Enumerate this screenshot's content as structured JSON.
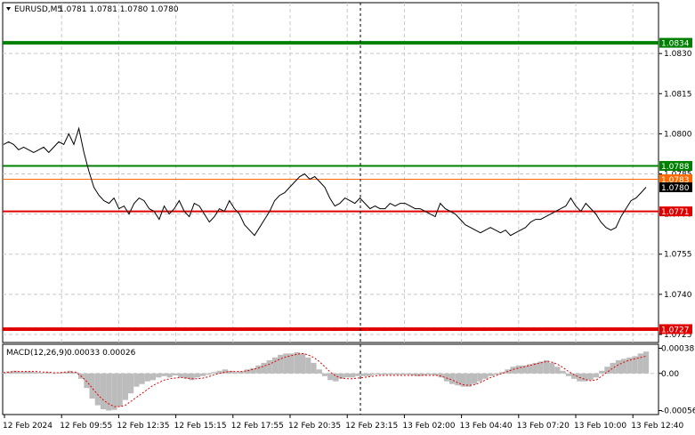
{
  "header": {
    "symbol": "EURUSD,M5",
    "ohlc": "1.0781 1.0781 1.0780 1.0780",
    "dropdown_icon": "triangle-down-icon"
  },
  "chart_data": {
    "type": "line",
    "title": "EURUSD,M5",
    "ylim": [
      1.0722,
      1.0849
    ],
    "price_ticks": [
      "1.0830",
      "1.0815",
      "1.0800",
      "1.0785",
      "1.0770",
      "1.0755",
      "1.0740",
      "1.0725"
    ],
    "time_ticks": [
      "12 Feb 2024",
      "12 Feb 09:55",
      "12 Feb 12:35",
      "12 Feb 15:15",
      "12 Feb 17:55",
      "12 Feb 20:35",
      "12 Feb 23:15",
      "13 Feb 02:00",
      "13 Feb 04:40",
      "13 Feb 07:20",
      "13 Feb 10:00",
      "13 Feb 12:40"
    ],
    "levels": [
      {
        "price": 1.0834,
        "label": "1.0834",
        "color": "#008000",
        "width": 4
      },
      {
        "price": 1.0788,
        "label": "1.0788",
        "color": "#008000",
        "width": 2
      },
      {
        "price": 1.0783,
        "label": "1.0783",
        "color": "#ff6a00",
        "width": 1
      },
      {
        "price": 1.0771,
        "label": "1.0771",
        "color": "#e00000",
        "width": 2
      },
      {
        "price": 1.0727,
        "label": "1.0727",
        "color": "#e00000",
        "width": 4
      }
    ],
    "current_price": "1.0780",
    "price_series": {
      "name": "EURUSD",
      "values": [
        1.0796,
        1.0797,
        1.0796,
        1.0794,
        1.0795,
        1.0794,
        1.0793,
        1.0794,
        1.0795,
        1.0793,
        1.0795,
        1.0797,
        1.0796,
        1.08,
        1.0796,
        1.0802,
        1.0793,
        1.0786,
        1.078,
        1.0777,
        1.0775,
        1.0774,
        1.0776,
        1.0772,
        1.0773,
        1.077,
        1.0774,
        1.0776,
        1.0775,
        1.0772,
        1.0771,
        1.0768,
        1.0773,
        1.077,
        1.0772,
        1.0775,
        1.0771,
        1.0769,
        1.0774,
        1.0773,
        1.077,
        1.0767,
        1.0769,
        1.0772,
        1.0771,
        1.0775,
        1.0772,
        1.077,
        1.0766,
        1.0764,
        1.0762,
        1.0765,
        1.0768,
        1.0771,
        1.0775,
        1.0777,
        1.0778,
        1.078,
        1.0782,
        1.0784,
        1.0785,
        1.0783,
        1.0784,
        1.0782,
        1.078,
        1.0776,
        1.0773,
        1.0774,
        1.0776,
        1.0775,
        1.0774,
        1.0776,
        1.0774,
        1.0772,
        1.0773,
        1.0772,
        1.0772,
        1.0774,
        1.0773,
        1.0774,
        1.0774,
        1.0773,
        1.0772,
        1.0772,
        1.0771,
        1.077,
        1.0769,
        1.0774,
        1.0772,
        1.0771,
        1.077,
        1.0768,
        1.0766,
        1.0765,
        1.0764,
        1.0763,
        1.0764,
        1.0765,
        1.0764,
        1.0763,
        1.0764,
        1.0762,
        1.0763,
        1.0764,
        1.0765,
        1.0767,
        1.0768,
        1.0768,
        1.0769,
        1.077,
        1.0771,
        1.0772,
        1.0773,
        1.0776,
        1.0773,
        1.0771,
        1.0774,
        1.0772,
        1.077,
        1.0767,
        1.0765,
        1.0764,
        1.0765,
        1.0769,
        1.0772,
        1.0775,
        1.0776,
        1.0778,
        1.078
      ]
    },
    "macd": {
      "label": "MACD(12,26,9)",
      "values_text": "0.00033 0.00026",
      "ticks": [
        "0.00038",
        "0.00",
        "-0.00056"
      ],
      "ylim": [
        -0.00062,
        0.00044
      ],
      "histogram": [
        1e-05,
        3e-05,
        4e-05,
        3e-05,
        3e-05,
        3e-05,
        2e-05,
        1e-05,
        2e-05,
        0.0,
        1e-05,
        2e-05,
        4e-05,
        2e-05,
        -8e-05,
        -0.00022,
        -0.00038,
        -0.00048,
        -0.00054,
        -0.00056,
        -0.00055,
        -0.0005,
        -0.0004,
        -0.0003,
        -0.0002,
        -0.00016,
        -0.00012,
        -0.0001,
        -6e-05,
        -4e-05,
        -6e-05,
        -3e-05,
        -6e-05,
        -8e-05,
        -0.0001,
        -6e-05,
        -4e-05,
        -2e-05,
        2e-05,
        4e-05,
        6e-05,
        4e-05,
        2e-05,
        3e-05,
        6e-05,
        8e-05,
        0.00012,
        0.00016,
        0.0002,
        0.00024,
        0.00028,
        0.0003,
        0.0003,
        0.00032,
        0.0003,
        0.00024,
        0.00016,
        6e-05,
        -4e-05,
        -0.0001,
        -0.00012,
        -8e-05,
        -6e-05,
        -6e-05,
        -4e-05,
        -4e-05,
        -4e-05,
        -2e-05,
        -2e-05,
        -2e-05,
        -2e-05,
        -2e-05,
        -2e-05,
        -2e-05,
        -3e-05,
        -4e-05,
        -3e-05,
        -2e-05,
        -3e-05,
        -6e-05,
        -0.00012,
        -0.00016,
        -0.00018,
        -0.0002,
        -0.0002,
        -0.00016,
        -0.00012,
        -8e-05,
        -4e-05,
        -2e-05,
        2e-05,
        6e-05,
        0.0001,
        0.00012,
        0.00012,
        0.00014,
        0.00016,
        0.00018,
        0.0002,
        0.00016,
        0.0001,
        4e-05,
        -4e-05,
        -8e-05,
        -0.00012,
        -0.00012,
        -0.0001,
        -6e-05,
        4e-05,
        0.0001,
        0.00016,
        0.0002,
        0.00022,
        0.00024,
        0.00026,
        0.0003,
        0.00033
      ],
      "signal": [
        1e-05,
        2e-05,
        3e-05,
        3e-05,
        3e-05,
        3e-05,
        3e-05,
        2e-05,
        2e-05,
        1e-05,
        1e-05,
        2e-05,
        2e-05,
        2e-05,
        -4e-05,
        -0.00012,
        -0.00022,
        -0.00032,
        -0.0004,
        -0.00046,
        -0.0005,
        -0.0005,
        -0.00048,
        -0.00042,
        -0.00036,
        -0.0003,
        -0.00024,
        -0.00018,
        -0.00014,
        -0.0001,
        -8e-05,
        -7e-05,
        -6e-05,
        -7e-05,
        -8e-05,
        -8e-05,
        -7e-05,
        -5e-05,
        -2e-05,
        0.0,
        2e-05,
        3e-05,
        3e-05,
        3e-05,
        4e-05,
        6e-05,
        8e-05,
        0.00011,
        0.00014,
        0.00018,
        0.00022,
        0.00025,
        0.00027,
        0.00029,
        0.0003,
        0.00028,
        0.00024,
        0.00018,
        0.0001,
        2e-05,
        -4e-05,
        -7e-05,
        -8e-05,
        -8e-05,
        -7e-05,
        -6e-05,
        -5e-05,
        -4e-05,
        -3e-05,
        -3e-05,
        -3e-05,
        -3e-05,
        -3e-05,
        -3e-05,
        -3e-05,
        -3e-05,
        -3e-05,
        -3e-05,
        -3e-05,
        -4e-05,
        -7e-05,
        -0.0001,
        -0.00014,
        -0.00017,
        -0.00018,
        -0.00017,
        -0.00014,
        -0.0001,
        -6e-05,
        -3e-05,
        0.0,
        3e-05,
        6e-05,
        8e-05,
        0.0001,
        0.00012,
        0.00014,
        0.00016,
        0.00018,
        0.00017,
        0.00014,
        9e-05,
        3e-05,
        -2e-05,
        -6e-05,
        -9e-05,
        -0.00011,
        -0.0001,
        -4e-05,
        2e-05,
        8e-05,
        0.00013,
        0.00017,
        0.0002,
        0.00022,
        0.00024,
        0.00026
      ]
    },
    "grid": true,
    "crosshair_time": "12 Feb 23:15"
  },
  "colors": {
    "price_line": "#000000",
    "grid": "#c8c8c8",
    "histogram": "#bcbcbc",
    "signal": "#e00000"
  }
}
